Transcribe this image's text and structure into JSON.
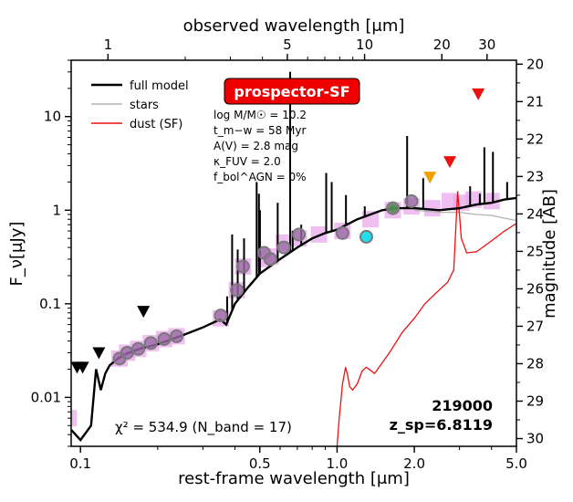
{
  "chart_data": {
    "type": "line",
    "title": "",
    "xlabel": "rest-frame wavelength [μm]",
    "x2label": "observed wavelength [μm]",
    "ylabel": "F_ν[μJy]",
    "y2label": "magnitude [AB]",
    "xscale": "log",
    "yscale": "log",
    "xlim": [
      0.092,
      5.0
    ],
    "ylim": [
      0.003,
      40
    ],
    "redshift": 6.8119,
    "x_ticks": [
      {
        "value": 0.1,
        "label": "0.1"
      },
      {
        "value": 0.5,
        "label": "0.5"
      },
      {
        "value": 1.0,
        "label": "1.0"
      },
      {
        "value": 2.0,
        "label": "2.0"
      },
      {
        "value": 5.0,
        "label": "5.0"
      }
    ],
    "x2_ticks": [
      {
        "value": 1,
        "label": "1"
      },
      {
        "value": 5,
        "label": "5"
      },
      {
        "value": 10,
        "label": "10"
      },
      {
        "value": 20,
        "label": "20"
      },
      {
        "value": 30,
        "label": "30"
      }
    ],
    "y_ticks": [
      {
        "value": 0.01,
        "label": "0.01"
      },
      {
        "value": 0.1,
        "label": "0.1"
      },
      {
        "value": 1,
        "label": "1"
      },
      {
        "value": 10,
        "label": "10"
      }
    ],
    "mag_ticks": [
      {
        "value": 20,
        "label": "20"
      },
      {
        "value": 21,
        "label": "21"
      },
      {
        "value": 22,
        "label": "22"
      },
      {
        "value": 23,
        "label": "23"
      },
      {
        "value": 24,
        "label": "24"
      },
      {
        "value": 25,
        "label": "25"
      },
      {
        "value": 26,
        "label": "26"
      },
      {
        "value": 27,
        "label": "27"
      },
      {
        "value": 28,
        "label": "28"
      },
      {
        "value": 29,
        "label": "29"
      },
      {
        "value": 30,
        "label": "30"
      }
    ],
    "legend": {
      "position": "top-left",
      "items": [
        {
          "label": "full model",
          "color": "#000000"
        },
        {
          "label": "stars",
          "color": "#b3b3b3"
        },
        {
          "label": "dust (SF)",
          "color": "#ee1111"
        }
      ]
    },
    "badge": {
      "label": "prospector-SF",
      "color": "#ee0000"
    },
    "parameters": [
      "log M/M☉ = 10.2",
      "t_m−w = 58 Myr",
      "A(V) = 2.8 mag",
      "κ_FUV = 2.0",
      "f_bol^AGN = 0%"
    ],
    "object_id": "219000",
    "z_label": "z_sp=6.8119",
    "chi2_label": "χ² = 534.9 (N_band = 17)",
    "colors": {
      "model": "#000000",
      "stars": "#b3b3b3",
      "dust": "#ee1111",
      "model_band": "#e9a9ec",
      "observed": "#9b6aa8",
      "observed_edge": "#7a7a7a",
      "upper_limit_black": "#000000",
      "upper_limit_orange": "#f0a000",
      "upper_limit_red": "#ee1111",
      "outlier_cyan": "#22ddee",
      "green_point": "#3a9a3a"
    },
    "series": [
      {
        "name": "full model",
        "color": "#000000",
        "x": [
          0.092,
          0.1,
          0.11,
          0.115,
          0.12,
          0.125,
          0.13,
          0.14,
          0.15,
          0.17,
          0.2,
          0.25,
          0.3,
          0.35,
          0.37,
          0.4,
          0.45,
          0.5,
          0.6,
          0.7,
          0.8,
          0.9,
          1.0,
          1.2,
          1.5,
          1.7,
          2.0,
          2.5,
          3.0,
          3.5,
          4.0,
          4.5,
          5.0
        ],
        "y": [
          0.0045,
          0.0035,
          0.005,
          0.02,
          0.012,
          0.018,
          0.022,
          0.026,
          0.029,
          0.033,
          0.037,
          0.046,
          0.056,
          0.068,
          0.06,
          0.1,
          0.15,
          0.21,
          0.3,
          0.4,
          0.5,
          0.57,
          0.62,
          0.8,
          1.0,
          1.05,
          1.05,
          1.0,
          1.05,
          1.15,
          1.2,
          1.3,
          1.35
        ]
      },
      {
        "name": "stars",
        "color": "#b3b3b3",
        "x": [
          2.0,
          2.5,
          3.0,
          3.5,
          4.0,
          4.5,
          5.0
        ],
        "y": [
          1.0,
          0.95,
          0.95,
          0.9,
          0.88,
          0.82,
          0.78
        ]
      },
      {
        "name": "dust (SF)",
        "color": "#ee1111",
        "x": [
          1.0,
          1.02,
          1.05,
          1.08,
          1.1,
          1.12,
          1.15,
          1.2,
          1.25,
          1.3,
          1.4,
          1.6,
          1.8,
          2.0,
          2.2,
          2.5,
          2.7,
          2.85,
          2.95,
          3.05,
          3.2,
          3.5,
          4.0,
          4.5,
          5.0
        ],
        "y": [
          0.003,
          0.006,
          0.014,
          0.021,
          0.017,
          0.013,
          0.012,
          0.014,
          0.019,
          0.021,
          0.018,
          0.03,
          0.05,
          0.07,
          0.1,
          0.14,
          0.17,
          0.23,
          1.6,
          0.5,
          0.35,
          0.36,
          0.47,
          0.6,
          0.72
        ]
      }
    ],
    "emission_lines": [
      {
        "x": 0.486,
        "peak": 2.0
      },
      {
        "x": 0.496,
        "peak": 1.5
      },
      {
        "x": 0.5007,
        "peak": 1.0
      },
      {
        "x": 0.6563,
        "peak": 30
      },
      {
        "x": 0.6716,
        "peak": 0.6
      },
      {
        "x": 0.373,
        "peak": 0.12
      },
      {
        "x": 0.39,
        "peak": 0.55
      },
      {
        "x": 0.41,
        "peak": 0.38
      },
      {
        "x": 0.434,
        "peak": 0.5
      },
      {
        "x": 0.587,
        "peak": 1.2
      },
      {
        "x": 0.725,
        "peak": 0.7
      },
      {
        "x": 0.907,
        "peak": 2.5
      },
      {
        "x": 0.953,
        "peak": 2.0
      },
      {
        "x": 1.083,
        "peak": 1.45
      },
      {
        "x": 1.282,
        "peak": 1.1
      },
      {
        "x": 1.644,
        "peak": 1.1
      },
      {
        "x": 1.875,
        "peak": 6.2
      },
      {
        "x": 2.166,
        "peak": 2.2
      },
      {
        "x": 3.3,
        "peak": 1.8
      },
      {
        "x": 3.6,
        "peak": 1.5
      },
      {
        "x": 3.75,
        "peak": 4.7
      },
      {
        "x": 4.05,
        "peak": 4.2
      },
      {
        "x": 4.6,
        "peak": 2.0
      }
    ],
    "photometry": {
      "detections": {
        "x": [
          0.142,
          0.152,
          0.168,
          0.188,
          0.212,
          0.237,
          0.352,
          0.407,
          0.43,
          0.52,
          0.55,
          0.62,
          0.71,
          1.05,
          1.65,
          1.95
        ],
        "y": [
          0.026,
          0.03,
          0.033,
          0.038,
          0.042,
          0.045,
          0.075,
          0.14,
          0.25,
          0.35,
          0.3,
          0.4,
          0.55,
          0.57,
          1.05,
          1.25
        ]
      },
      "model_bands": {
        "x": [
          0.09,
          0.142,
          0.152,
          0.168,
          0.188,
          0.212,
          0.237,
          0.352,
          0.407,
          0.43,
          0.52,
          0.55,
          0.62,
          0.71,
          0.85,
          1.05,
          1.35,
          1.65,
          1.95,
          2.35,
          2.75,
          3.05,
          3.4,
          4.0
        ],
        "y": [
          0.006,
          0.026,
          0.03,
          0.033,
          0.038,
          0.042,
          0.045,
          0.07,
          0.14,
          0.25,
          0.3,
          0.32,
          0.45,
          0.5,
          0.55,
          0.6,
          0.8,
          1.0,
          1.1,
          1.05,
          1.25,
          1.2,
          1.3,
          1.25
        ]
      },
      "upper_limits_black": {
        "x": [
          0.097,
          0.102,
          0.118,
          0.176
        ],
        "y": [
          0.021,
          0.021,
          0.03,
          0.083
        ]
      },
      "upper_limits_orange": {
        "x": [
          2.3
        ],
        "y": [
          2.25
        ]
      },
      "upper_limits_red": {
        "x": [
          2.75,
          3.55
        ],
        "y": [
          3.3,
          17.5
        ]
      },
      "outliers_cyan": {
        "x": [
          1.3
        ],
        "y": [
          0.52
        ]
      }
    }
  }
}
